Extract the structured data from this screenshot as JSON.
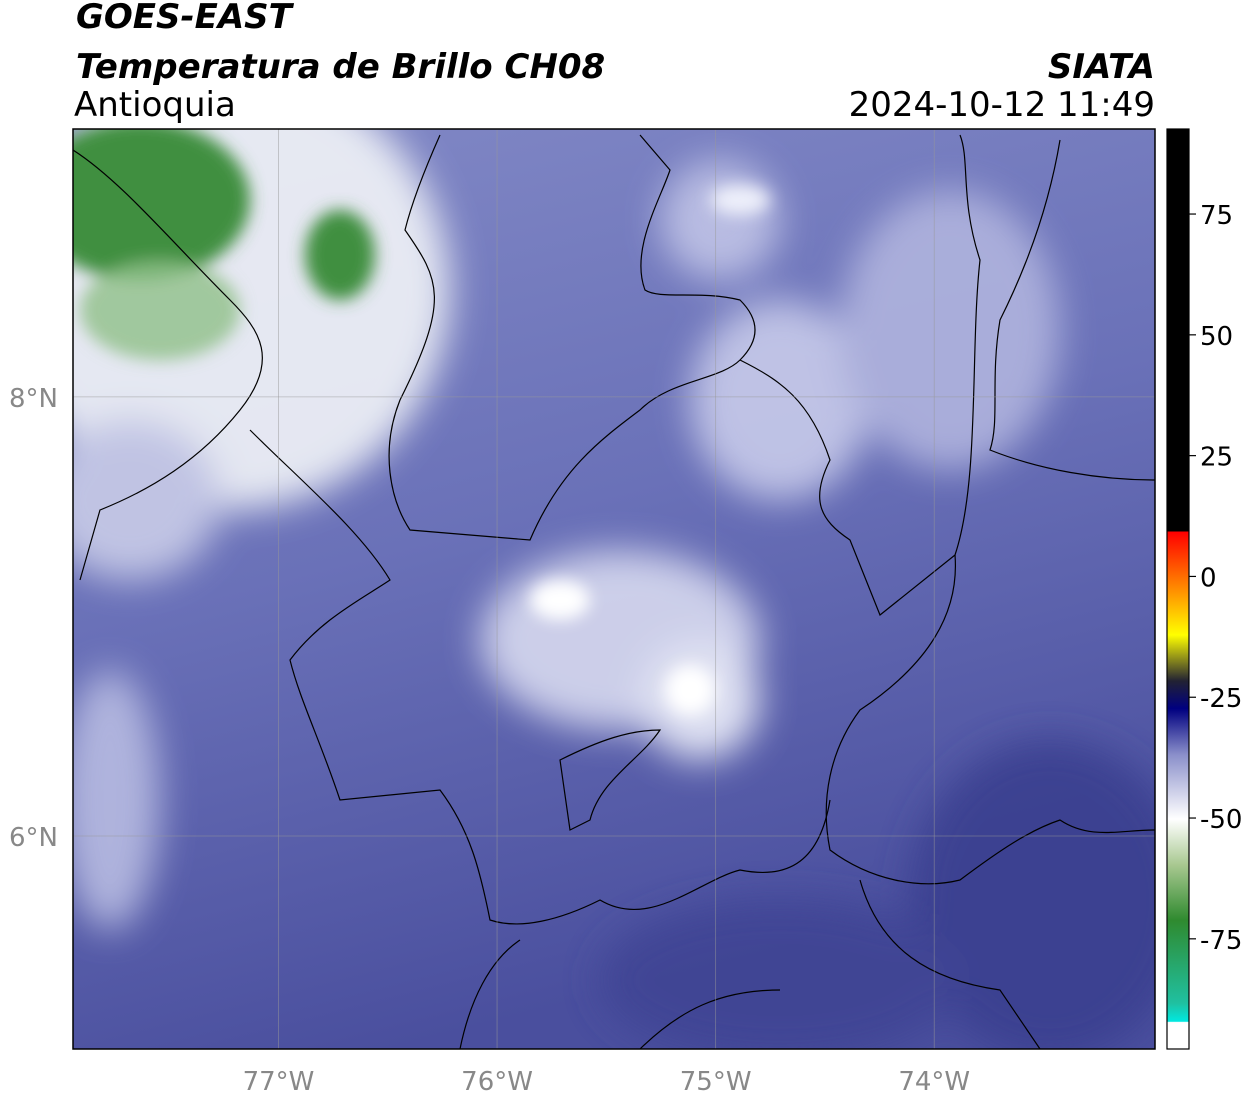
{
  "header": {
    "title": "GOES-EAST",
    "subtitle": "Temperatura de Brillo CH08",
    "region": "Antioquia",
    "source": "SIATA",
    "datetime": "2024-10-12 11:49"
  },
  "map": {
    "xlim": [
      -77.94,
      -72.99
    ],
    "ylim": [
      5.03,
      9.22
    ],
    "xticks": [
      {
        "value": -77,
        "label": "77°W"
      },
      {
        "value": -76,
        "label": "76°W"
      },
      {
        "value": -75,
        "label": "75°W"
      },
      {
        "value": -74,
        "label": "74°W"
      }
    ],
    "yticks": [
      {
        "value": 6,
        "label": "6°N"
      },
      {
        "value": 8,
        "label": "8°N"
      }
    ],
    "grid": true
  },
  "colorbar": {
    "lim": [
      -97.8,
      92.6
    ],
    "ticks": [
      -75,
      -50,
      -25,
      0,
      25,
      50,
      75
    ]
  }
}
